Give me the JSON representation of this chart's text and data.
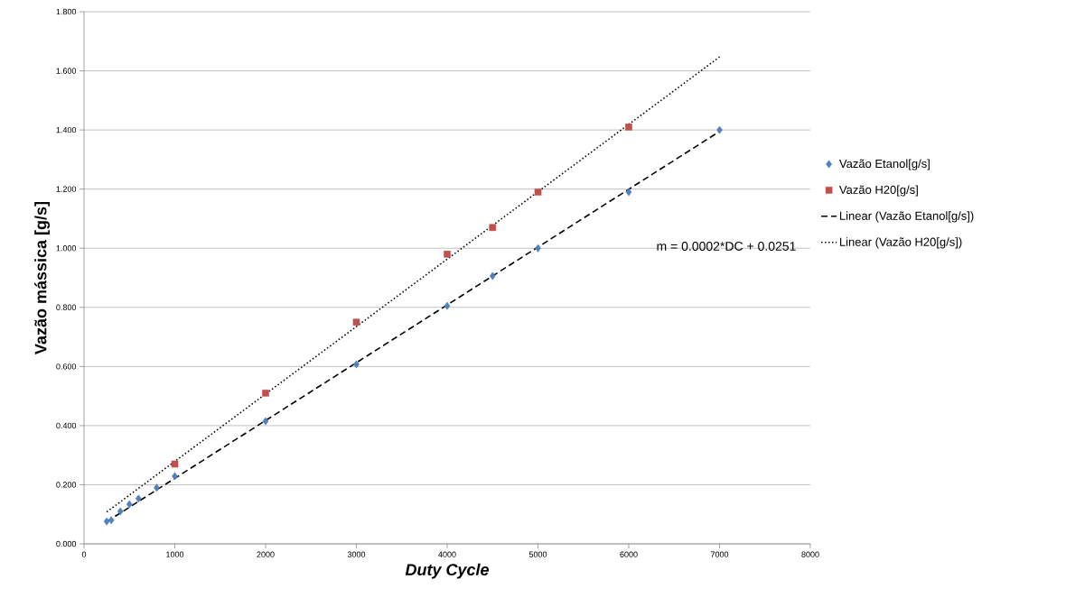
{
  "chart_data": {
    "type": "scatter",
    "xlabel": "Duty Cycle",
    "ylabel": "Vazão mássica [g/s]",
    "xlim": [
      0,
      8000
    ],
    "xticks": [
      0,
      1000,
      2000,
      3000,
      4000,
      5000,
      6000,
      7000,
      8000
    ],
    "ylim": [
      0,
      1.8
    ],
    "yticks": [
      {
        "value": 0,
        "label": "0.000"
      },
      {
        "value": 0.2,
        "label": "0.200"
      },
      {
        "value": 0.4,
        "label": "0.400"
      },
      {
        "value": 0.6,
        "label": "0.600"
      },
      {
        "value": 0.8,
        "label": "0.800"
      },
      {
        "value": 1.0,
        "label": "1.000"
      },
      {
        "value": 1.2,
        "label": "1.200"
      },
      {
        "value": 1.4,
        "label": "1.400"
      },
      {
        "value": 1.6,
        "label": "1.600"
      },
      {
        "value": 1.8,
        "label": "1.800"
      }
    ],
    "grid": "y",
    "legend": "right",
    "annotations": [
      "m = 0.0002*DC + 0.0251"
    ],
    "series": [
      {
        "name": "Vazão Etanol[g/s]",
        "color": "#4f81bd",
        "marker": "diamond",
        "x": [
          250,
          300,
          400,
          500,
          600,
          800,
          1000,
          2000,
          3000,
          4000,
          4500,
          5000,
          6000,
          7000
        ],
        "values": [
          0.076,
          0.08,
          0.11,
          0.134,
          0.153,
          0.19,
          0.229,
          0.415,
          0.607,
          0.805,
          0.906,
          1.0,
          1.19,
          1.4
        ]
      },
      {
        "name": "Vazão H20[g/s]",
        "color": "#c0504d",
        "marker": "square",
        "x": [
          1000,
          2000,
          3000,
          4000,
          4500,
          5000,
          6000
        ],
        "values": [
          0.27,
          0.51,
          0.75,
          0.98,
          1.07,
          1.19,
          1.41
        ]
      },
      {
        "name": "Linear (Vazão Etanol[g/s])",
        "type": "line",
        "color": "#000000",
        "line_style": "dashed",
        "x": [
          250,
          7000
        ],
        "values": [
          0.075,
          1.395
        ]
      },
      {
        "name": "Linear (Vazão H20[g/s])",
        "type": "line",
        "color": "#000000",
        "line_style": "dotted",
        "x": [
          250,
          7000
        ],
        "values": [
          0.108,
          1.647
        ]
      }
    ]
  }
}
